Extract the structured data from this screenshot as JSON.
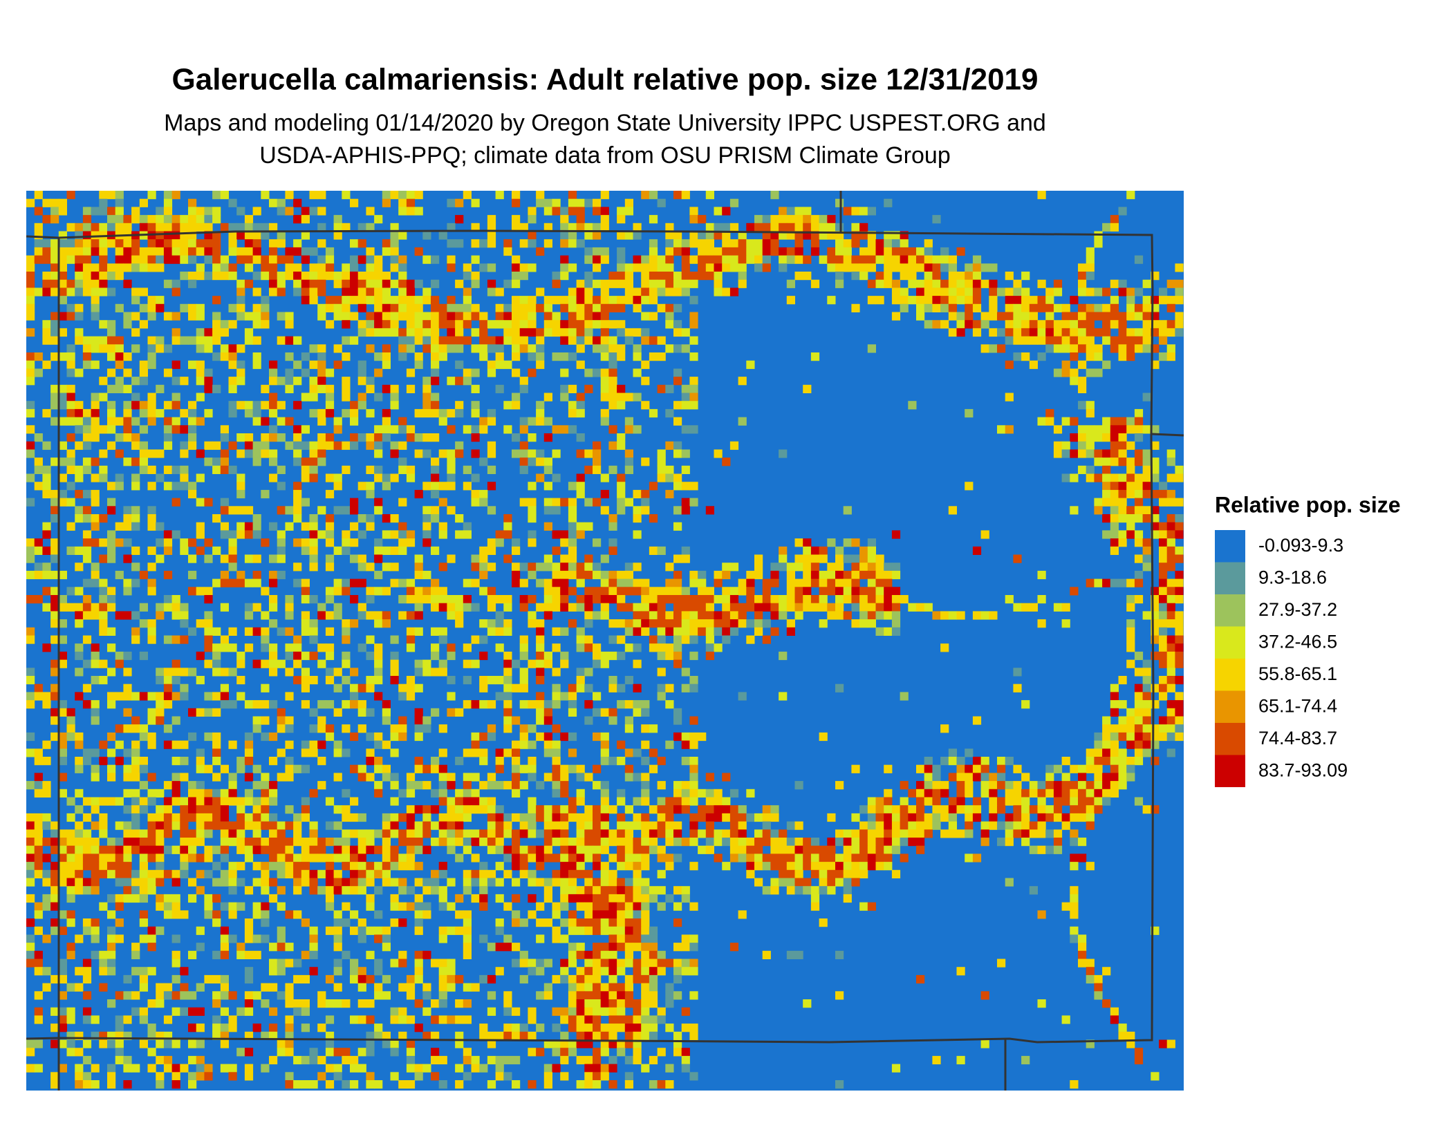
{
  "header": {
    "title": "Galerucella calmariensis: Adult relative pop. size 12/31/2019",
    "subtitle_lines": [
      "Maps and modeling 01/14/2020 by Oregon State University IPPC USPEST.ORG and",
      "USDA-APHIS-PPQ; climate data from OSU PRISM Climate Group"
    ]
  },
  "legend": {
    "title": "Relative pop. size",
    "items": [
      {
        "label": "-0.093-9.3",
        "color": "#1a74cf"
      },
      {
        "label": "9.3-18.6",
        "color": "#5b9a9c"
      },
      {
        "label": "27.9-37.2",
        "color": "#9dc35c"
      },
      {
        "label": "37.2-46.5",
        "color": "#d9e81c"
      },
      {
        "label": "55.8-65.1",
        "color": "#f6d400"
      },
      {
        "label": "65.1-74.4",
        "color": "#e99500"
      },
      {
        "label": "74.4-83.7",
        "color": "#d94a00"
      },
      {
        "label": "83.7-93.09",
        "color": "#cc0000"
      }
    ]
  }
}
